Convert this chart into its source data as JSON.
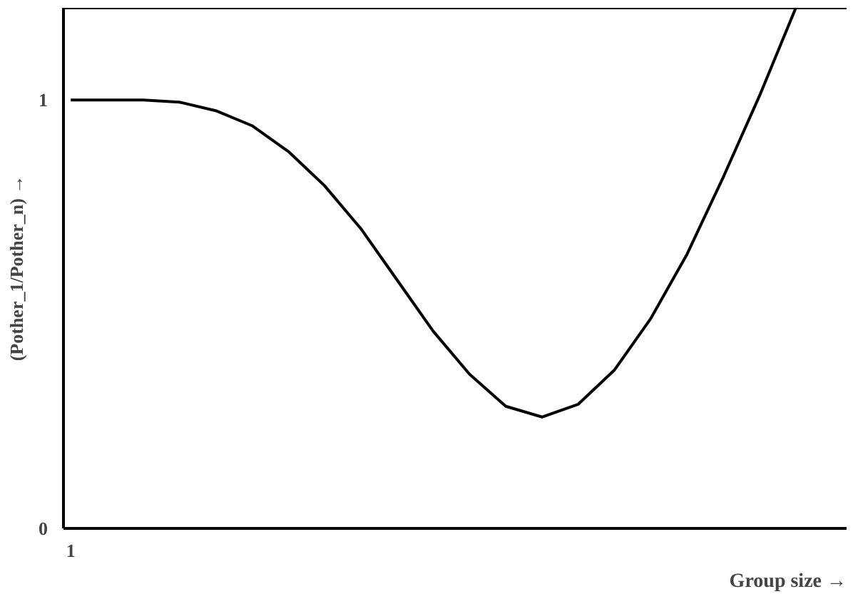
{
  "chart_data": {
    "type": "line",
    "xlabel": "Group size →",
    "ylabel": "(Pother_1/Pother_n) →",
    "categories": [
      "1",
      null,
      null,
      null,
      null,
      null,
      null,
      null,
      null,
      null,
      null,
      null,
      null,
      null,
      null,
      null,
      null,
      null,
      null,
      null,
      null
    ],
    "series": [
      {
        "color": "#000000",
        "values": [
          1.0,
          1.0,
          1.0,
          0.995,
          0.975,
          0.94,
          0.88,
          0.8,
          0.7,
          0.58,
          0.46,
          0.36,
          0.285,
          0.26,
          0.29,
          0.37,
          0.49,
          0.64,
          0.82,
          1.01,
          1.215
        ]
      }
    ],
    "ylim": [
      0,
      1.215
    ],
    "yticks": [
      0,
      1
    ],
    "grid": false,
    "marker": "none",
    "line_style": "solid"
  }
}
